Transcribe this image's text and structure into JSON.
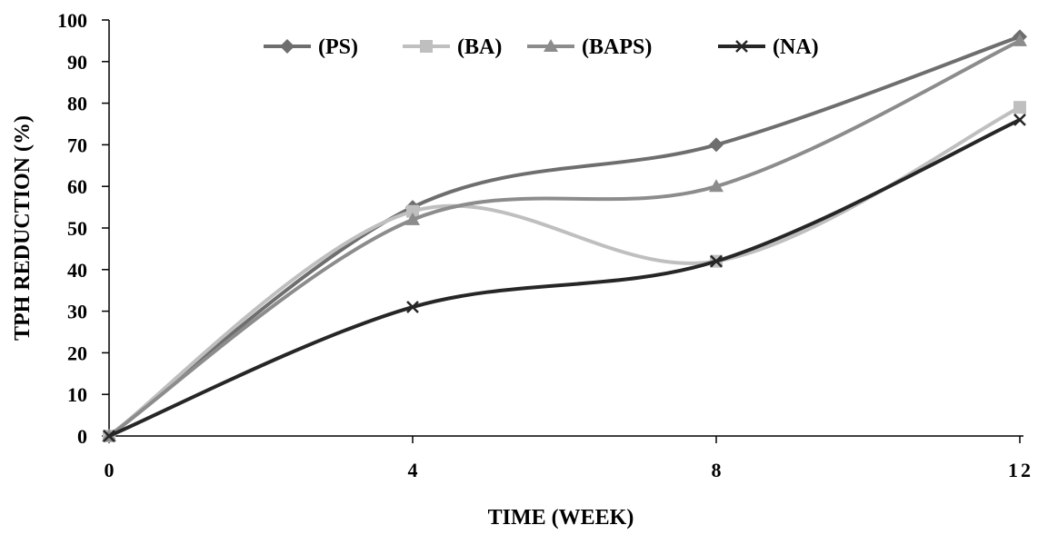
{
  "chart_data": {
    "type": "line",
    "xlabel": "TIME (WEEK)",
    "ylabel": "TPH REDUCTION (%)",
    "x": [
      0,
      4,
      8,
      12
    ],
    "xlim": [
      0,
      12
    ],
    "ylim": [
      0,
      100
    ],
    "x_ticks": [
      "0",
      "4",
      "8",
      "12"
    ],
    "y_ticks": [
      "0",
      "10",
      "20",
      "30",
      "40",
      "50",
      "60",
      "70",
      "80",
      "90",
      "100"
    ],
    "grid": false,
    "legend_position": "top",
    "smooth": true,
    "series": [
      {
        "name": "(PS)",
        "values": [
          0,
          55,
          70,
          96
        ],
        "color": "#6e6e6e",
        "marker": "diamond"
      },
      {
        "name": "(BA)",
        "values": [
          0,
          54,
          42,
          79
        ],
        "color": "#bfbfbf",
        "marker": "square"
      },
      {
        "name": "(BAPS)",
        "values": [
          0,
          52,
          60,
          95
        ],
        "color": "#8c8c8c",
        "marker": "triangle"
      },
      {
        "name": "(NA)",
        "values": [
          0,
          31,
          42,
          76
        ],
        "color": "#262626",
        "marker": "x"
      }
    ]
  }
}
